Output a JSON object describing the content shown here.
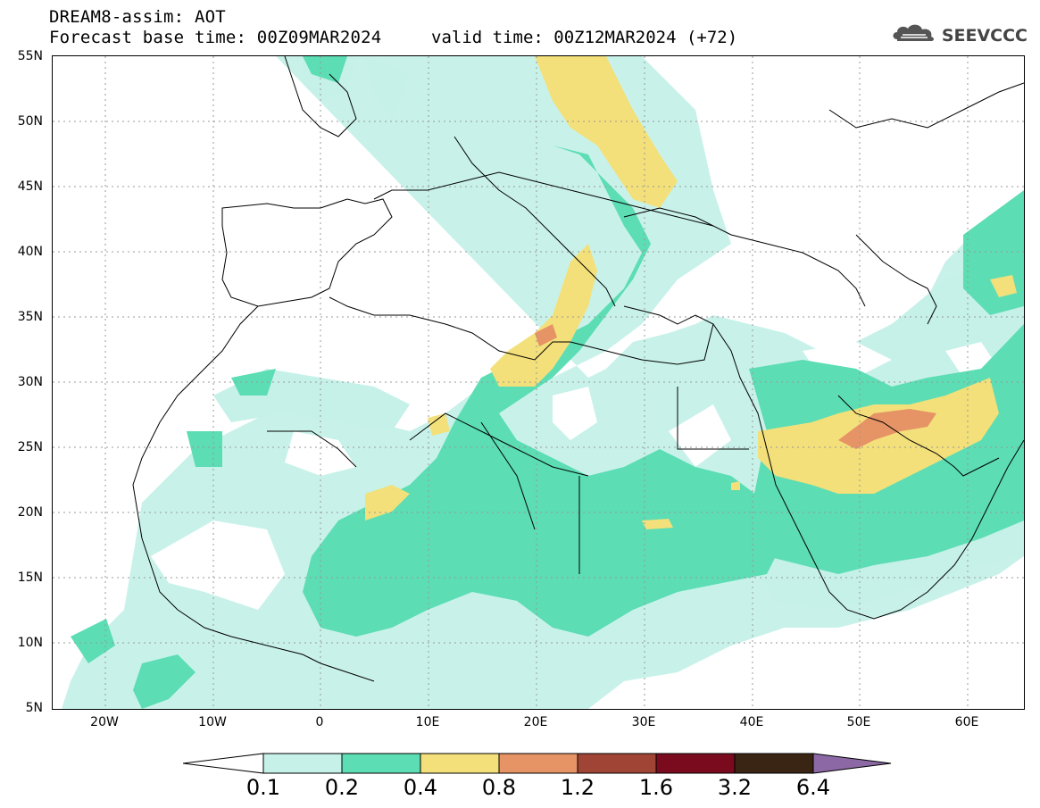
{
  "header": {
    "title": "DREAM8-assim: AOT",
    "base_time": "Forecast base time: 00Z09MAR2024",
    "valid_time": "valid time: 00Z12MAR2024 (+72)"
  },
  "logo": {
    "text": "SEEVCCC",
    "icon": "cloud-icon"
  },
  "axes": {
    "lat_labels": [
      "55N",
      "50N",
      "45N",
      "40N",
      "35N",
      "30N",
      "25N",
      "20N",
      "15N",
      "10N",
      "5N"
    ],
    "lon_labels": [
      "20W",
      "10W",
      "0",
      "10E",
      "20E",
      "30E",
      "40E",
      "50E",
      "60E"
    ]
  },
  "colorbar": {
    "labels": [
      "0.1",
      "0.2",
      "0.4",
      "0.8",
      "1.2",
      "1.6",
      "3.2",
      "6.4"
    ],
    "colors": [
      "#ffffff",
      "#c5f1e8",
      "#5cddb4",
      "#f3e07a",
      "#e69366",
      "#a04436",
      "#7a0b1e",
      "#3a2514",
      "#8c69a4"
    ]
  },
  "palette": {
    "light_cyan": "#c5f1e8",
    "green": "#5cddb4",
    "yellow": "#f3e07a",
    "orange": "#e69366",
    "grid": "#888888"
  }
}
